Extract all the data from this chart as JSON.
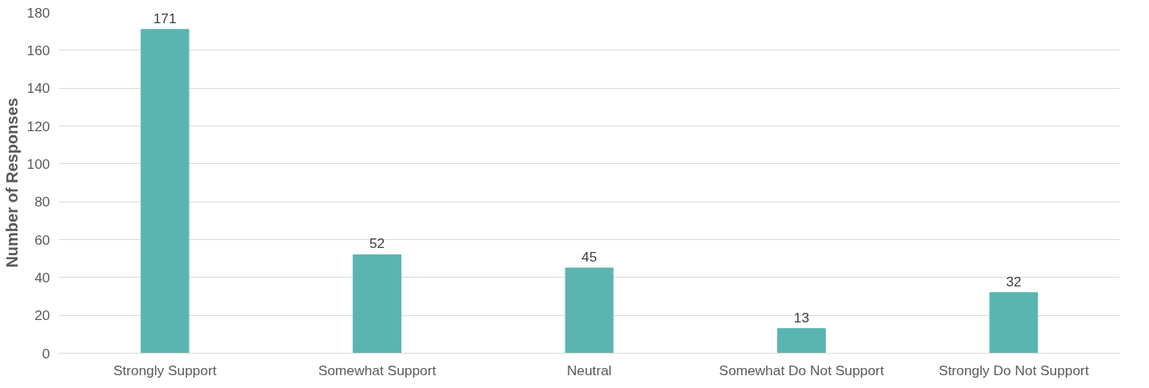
{
  "chart_data": {
    "type": "bar",
    "ylabel": "Number of Responses",
    "categories": [
      "Strongly Support",
      "Somewhat Support",
      "Neutral",
      "Somewhat Do Not Support",
      "Strongly Do Not Support"
    ],
    "values": [
      171,
      52,
      45,
      13,
      32
    ],
    "color": "#5ab5b0",
    "ylim": [
      0,
      180
    ],
    "yticks": [
      0,
      20,
      40,
      60,
      80,
      100,
      120,
      140,
      160,
      180
    ],
    "grid": "y",
    "data_labels": true
  }
}
